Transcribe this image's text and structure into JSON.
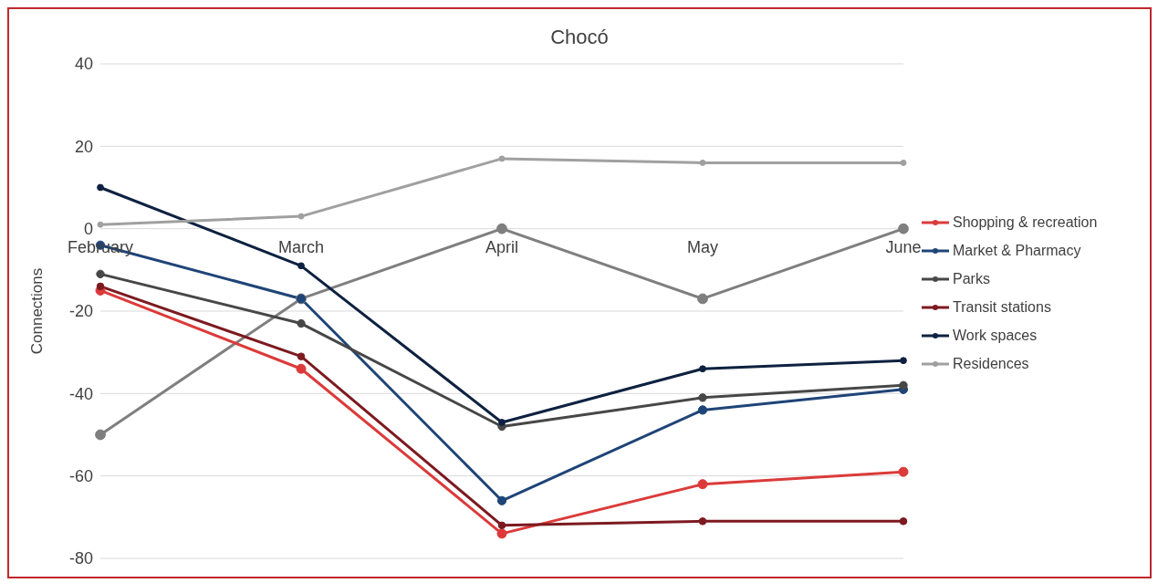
{
  "chart_data": {
    "type": "line",
    "title": "Chocó",
    "ylabel": "Connections",
    "categories": [
      "February",
      "March",
      "April",
      "May",
      "June"
    ],
    "series": [
      {
        "color": "#7f7f7f",
        "values": [
          -50,
          -17,
          0,
          -17,
          0
        ]
      },
      {
        "name": "Shopping & recreation",
        "color": "#dc3a3a",
        "values": [
          -15,
          -34,
          -74,
          -62,
          -59
        ]
      },
      {
        "name": "Market & Pharmacy",
        "color": "#1f4477",
        "values": [
          -4,
          -17,
          -66,
          -44,
          -39
        ]
      },
      {
        "name": "Parks",
        "color": "#474747",
        "values": [
          -11,
          -23,
          -48,
          -41,
          -38
        ]
      },
      {
        "name": "Transit stations",
        "color": "#7c1a20",
        "values": [
          -14,
          -31,
          -72,
          -71,
          -71
        ]
      },
      {
        "name": "Work spaces",
        "color": "#0e2140",
        "values": [
          10,
          -9,
          -47,
          -34,
          -32
        ]
      },
      {
        "name": "Residences",
        "color": "#a0a0a0",
        "values": [
          1,
          3,
          17,
          16,
          16
        ]
      }
    ],
    "ylim": [
      -80,
      40
    ],
    "yticks": [
      -80,
      -60,
      -40,
      -20,
      0,
      20,
      40
    ],
    "grid": "y",
    "legend": "right",
    "marker": "circle",
    "line_style": "solid"
  }
}
